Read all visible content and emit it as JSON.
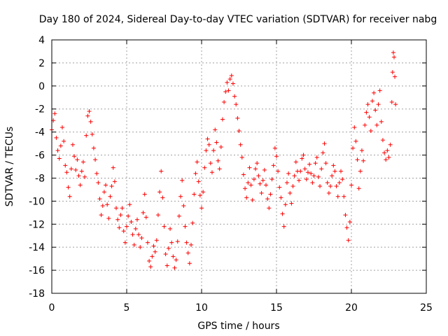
{
  "chart_data": {
    "type": "scatter",
    "title": "Day 180 of 2024, Sidereal Day-to-day VTEC variation (SDTVAR) for receiver nabg",
    "xlabel": "GPS time / hours",
    "ylabel": "SDTVAR / TECUs",
    "xlim": [
      0,
      25
    ],
    "ylim": [
      -18,
      4
    ],
    "xticks": [
      0,
      5,
      10,
      15,
      20,
      25
    ],
    "yticks": [
      -18,
      -16,
      -14,
      -12,
      -10,
      -8,
      -6,
      -4,
      -2,
      0,
      2,
      4
    ],
    "grid": true,
    "marker": "+",
    "series_color": "#ff0000",
    "series": [
      {
        "name": "SDTVAR",
        "points": [
          [
            0.0,
            -3.8
          ],
          [
            0.1,
            -3.0
          ],
          [
            0.2,
            -2.4
          ],
          [
            0.3,
            -4.5
          ],
          [
            0.4,
            -5.6
          ],
          [
            0.5,
            -6.3
          ],
          [
            0.6,
            -5.2
          ],
          [
            0.7,
            -3.6
          ],
          [
            0.8,
            -4.8
          ],
          [
            0.9,
            -6.9
          ],
          [
            1.0,
            -7.5
          ],
          [
            1.1,
            -8.8
          ],
          [
            1.2,
            -9.6
          ],
          [
            1.3,
            -7.2
          ],
          [
            1.4,
            -5.1
          ],
          [
            1.5,
            -6.1
          ],
          [
            1.6,
            -7.3
          ],
          [
            1.7,
            -6.4
          ],
          [
            1.8,
            -7.8
          ],
          [
            1.9,
            -8.6
          ],
          [
            2.0,
            -7.4
          ],
          [
            2.1,
            -6.6
          ],
          [
            2.2,
            -7.9
          ],
          [
            2.3,
            -4.3
          ],
          [
            2.4,
            -2.6
          ],
          [
            2.5,
            -2.2
          ],
          [
            2.6,
            -3.1
          ],
          [
            2.7,
            -4.2
          ],
          [
            2.8,
            -5.4
          ],
          [
            2.9,
            -6.4
          ],
          [
            3.0,
            -7.6
          ],
          [
            3.1,
            -8.4
          ],
          [
            3.2,
            -9.8
          ],
          [
            3.3,
            -11.2
          ],
          [
            3.4,
            -10.4
          ],
          [
            3.5,
            -9.2
          ],
          [
            3.6,
            -8.6
          ],
          [
            3.7,
            -10.3
          ],
          [
            3.8,
            -11.5
          ],
          [
            3.9,
            -9.6
          ],
          [
            4.0,
            -8.7
          ],
          [
            4.1,
            -7.1
          ],
          [
            4.2,
            -8.3
          ],
          [
            4.3,
            -10.6
          ],
          [
            4.4,
            -11.6
          ],
          [
            4.5,
            -12.3
          ],
          [
            4.6,
            -11.2
          ],
          [
            4.7,
            -10.6
          ],
          [
            4.8,
            -12.6
          ],
          [
            4.9,
            -13.6
          ],
          [
            5.0,
            -12.2
          ],
          [
            5.1,
            -11.3
          ],
          [
            5.2,
            -10.3
          ],
          [
            5.3,
            -11.8
          ],
          [
            5.4,
            -12.9
          ],
          [
            5.5,
            -13.8
          ],
          [
            5.6,
            -12.4
          ],
          [
            5.7,
            -11.6
          ],
          [
            5.8,
            -12.9
          ],
          [
            5.9,
            -14.0
          ],
          [
            6.0,
            -13.2
          ],
          [
            6.1,
            -11.0
          ],
          [
            6.2,
            -9.4
          ],
          [
            6.3,
            -11.4
          ],
          [
            6.4,
            -13.6
          ],
          [
            6.5,
            -15.2
          ],
          [
            6.6,
            -15.7
          ],
          [
            6.7,
            -14.8
          ],
          [
            6.8,
            -13.9
          ],
          [
            6.9,
            -14.4
          ],
          [
            7.0,
            -13.4
          ],
          [
            7.1,
            -11.2
          ],
          [
            7.2,
            -9.2
          ],
          [
            7.3,
            -7.4
          ],
          [
            7.4,
            -9.7
          ],
          [
            7.5,
            -12.2
          ],
          [
            7.6,
            -14.6
          ],
          [
            7.7,
            -15.6
          ],
          [
            7.8,
            -14.1
          ],
          [
            7.9,
            -12.4
          ],
          [
            8.0,
            -13.6
          ],
          [
            8.1,
            -14.8
          ],
          [
            8.2,
            -15.8
          ],
          [
            8.3,
            -15.1
          ],
          [
            8.4,
            -13.5
          ],
          [
            8.5,
            -11.3
          ],
          [
            8.6,
            -9.6
          ],
          [
            8.7,
            -8.2
          ],
          [
            8.8,
            -10.4
          ],
          [
            8.9,
            -12.2
          ],
          [
            9.0,
            -13.6
          ],
          [
            9.1,
            -14.5
          ],
          [
            9.2,
            -15.4
          ],
          [
            9.3,
            -13.8
          ],
          [
            9.4,
            -11.9
          ],
          [
            9.5,
            -9.4
          ],
          [
            9.6,
            -7.6
          ],
          [
            9.7,
            -6.6
          ],
          [
            9.8,
            -8.3
          ],
          [
            9.9,
            -9.5
          ],
          [
            10.0,
            -10.6
          ],
          [
            10.1,
            -9.2
          ],
          [
            10.2,
            -7.1
          ],
          [
            10.3,
            -5.6
          ],
          [
            10.4,
            -4.6
          ],
          [
            10.5,
            -5.1
          ],
          [
            10.6,
            -6.7
          ],
          [
            10.7,
            -7.5
          ],
          [
            10.8,
            -5.6
          ],
          [
            10.9,
            -3.8
          ],
          [
            11.0,
            -4.9
          ],
          [
            11.1,
            -6.5
          ],
          [
            11.2,
            -7.2
          ],
          [
            11.3,
            -5.3
          ],
          [
            11.4,
            -2.9
          ],
          [
            11.5,
            -1.4
          ],
          [
            11.6,
            -0.5
          ],
          [
            11.7,
            0.3
          ],
          [
            11.8,
            -0.4
          ],
          [
            11.9,
            0.6
          ],
          [
            12.0,
            0.9
          ],
          [
            12.1,
            0.2
          ],
          [
            12.2,
            -0.9
          ],
          [
            12.3,
            -1.6
          ],
          [
            12.4,
            -2.8
          ],
          [
            12.5,
            -3.9
          ],
          [
            12.6,
            -5.1
          ],
          [
            12.7,
            -6.2
          ],
          [
            12.8,
            -7.7
          ],
          [
            12.9,
            -8.9
          ],
          [
            13.0,
            -9.7
          ],
          [
            13.1,
            -8.4
          ],
          [
            13.2,
            -7.1
          ],
          [
            13.3,
            -8.6
          ],
          [
            13.4,
            -9.9
          ],
          [
            13.5,
            -8.1
          ],
          [
            13.6,
            -7.2
          ],
          [
            13.7,
            -6.7
          ],
          [
            13.8,
            -7.8
          ],
          [
            13.9,
            -8.5
          ],
          [
            14.0,
            -9.3
          ],
          [
            14.1,
            -8.2
          ],
          [
            14.2,
            -7.3
          ],
          [
            14.3,
            -8.6
          ],
          [
            14.4,
            -9.8
          ],
          [
            14.5,
            -10.6
          ],
          [
            14.6,
            -9.4
          ],
          [
            14.7,
            -8.1
          ],
          [
            14.8,
            -6.9
          ],
          [
            14.9,
            -5.4
          ],
          [
            15.0,
            -6.1
          ],
          [
            15.1,
            -7.4
          ],
          [
            15.2,
            -8.8
          ],
          [
            15.3,
            -9.7
          ],
          [
            15.4,
            -11.1
          ],
          [
            15.5,
            -12.2
          ],
          [
            15.6,
            -10.3
          ],
          [
            15.7,
            -8.4
          ],
          [
            15.8,
            -7.6
          ],
          [
            15.9,
            -9.3
          ],
          [
            16.0,
            -10.2
          ],
          [
            16.1,
            -8.7
          ],
          [
            16.2,
            -7.8
          ],
          [
            16.3,
            -6.6
          ],
          [
            16.4,
            -7.4
          ],
          [
            16.5,
            -8.2
          ],
          [
            16.6,
            -7.4
          ],
          [
            16.7,
            -6.3
          ],
          [
            16.8,
            -6.0
          ],
          [
            16.9,
            -7.2
          ],
          [
            17.0,
            -8.1
          ],
          [
            17.1,
            -7.5
          ],
          [
            17.2,
            -6.8
          ],
          [
            17.3,
            -7.6
          ],
          [
            17.4,
            -8.4
          ],
          [
            17.5,
            -7.8
          ],
          [
            17.6,
            -6.7
          ],
          [
            17.7,
            -6.2
          ],
          [
            17.8,
            -7.9
          ],
          [
            17.9,
            -8.7
          ],
          [
            18.0,
            -7.2
          ],
          [
            18.1,
            -5.8
          ],
          [
            18.2,
            -5.0
          ],
          [
            18.3,
            -6.7
          ],
          [
            18.4,
            -8.4
          ],
          [
            18.5,
            -9.3
          ],
          [
            18.6,
            -8.7
          ],
          [
            18.7,
            -7.8
          ],
          [
            18.8,
            -6.9
          ],
          [
            18.9,
            -7.4
          ],
          [
            19.0,
            -8.7
          ],
          [
            19.1,
            -9.6
          ],
          [
            19.2,
            -8.4
          ],
          [
            19.3,
            -7.4
          ],
          [
            19.4,
            -8.1
          ],
          [
            19.5,
            -9.6
          ],
          [
            19.6,
            -11.2
          ],
          [
            19.7,
            -12.3
          ],
          [
            19.8,
            -13.4
          ],
          [
            19.9,
            -11.8
          ],
          [
            20.0,
            -8.6
          ],
          [
            20.1,
            -5.4
          ],
          [
            20.2,
            -3.6
          ],
          [
            20.3,
            -4.8
          ],
          [
            20.4,
            -6.4
          ],
          [
            20.5,
            -8.9
          ],
          [
            20.6,
            -7.4
          ],
          [
            20.7,
            -5.6
          ],
          [
            20.8,
            -6.5
          ],
          [
            20.9,
            -3.4
          ],
          [
            21.0,
            -2.3
          ],
          [
            21.1,
            -1.6
          ],
          [
            21.2,
            -2.7
          ],
          [
            21.3,
            -3.9
          ],
          [
            21.4,
            -1.3
          ],
          [
            21.5,
            -0.6
          ],
          [
            21.6,
            -2.1
          ],
          [
            21.7,
            -3.4
          ],
          [
            21.8,
            -1.6
          ],
          [
            21.9,
            -0.4
          ],
          [
            22.0,
            -3.1
          ],
          [
            22.1,
            -4.7
          ],
          [
            22.2,
            -5.8
          ],
          [
            22.3,
            -6.4
          ],
          [
            22.4,
            -5.6
          ],
          [
            22.5,
            -6.2
          ],
          [
            22.6,
            -5.1
          ],
          [
            22.7,
            -1.4
          ],
          [
            22.75,
            1.2
          ],
          [
            22.8,
            2.9
          ],
          [
            22.85,
            2.5
          ],
          [
            22.9,
            0.8
          ],
          [
            22.95,
            -1.6
          ]
        ]
      }
    ]
  }
}
